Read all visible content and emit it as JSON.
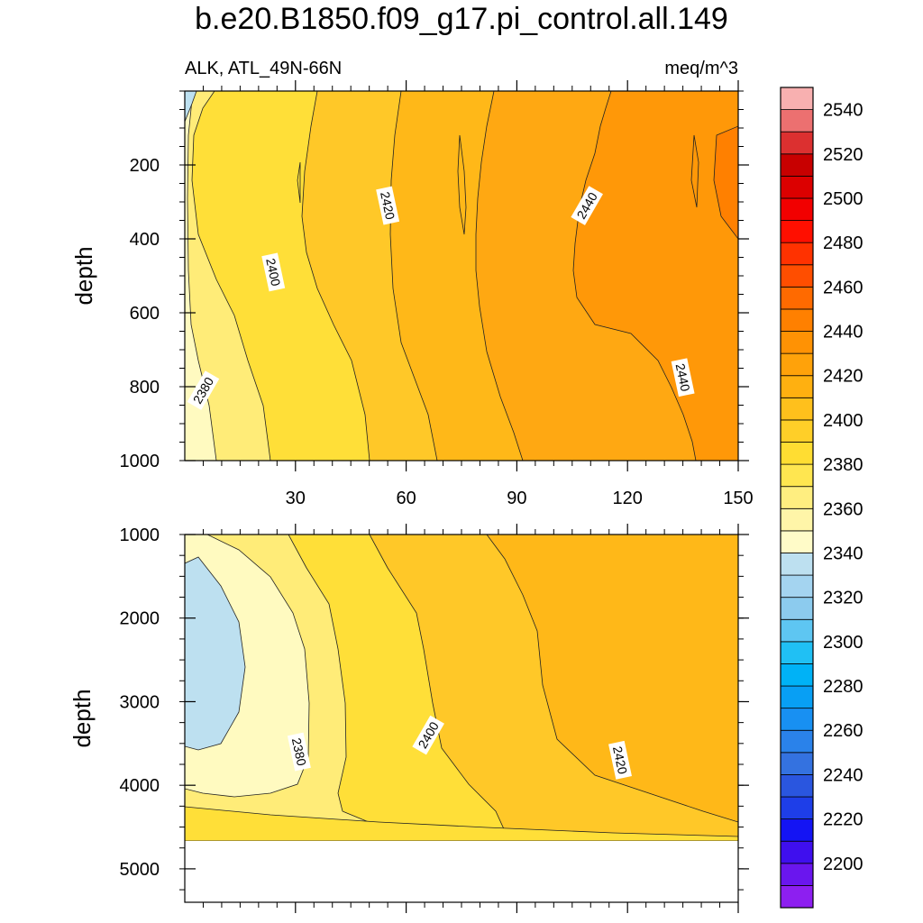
{
  "chart_data": [
    {
      "type": "heatmap",
      "subtype": "filled-contour",
      "title": "b.e20.B1850.f09_g17.pi_control.all.149",
      "left_string": "ALK, ATL_49N-66N",
      "right_string": "meq/m^3",
      "ylabel": "depth",
      "xlabel": "",
      "xlim": [
        0,
        150
      ],
      "ylim": [
        1000,
        0
      ],
      "xticks": [
        30,
        60,
        90,
        120,
        150
      ],
      "yticks": [
        200,
        400,
        600,
        800,
        1000
      ],
      "ytick_labels": [
        "200",
        "400",
        "600",
        "800",
        "1000"
      ],
      "xtick_labels": [
        "30",
        "60",
        "90",
        "120",
        "150"
      ],
      "contour_labels": [
        {
          "text": "2420",
          "x": 55,
          "y": 310
        },
        {
          "text": "2440",
          "x": 109,
          "y": 310
        },
        {
          "text": "2400",
          "x": 24,
          "y": 490
        },
        {
          "text": "2380",
          "x": 5,
          "y": 810
        },
        {
          "text": "2440",
          "x": 135,
          "y": 775
        }
      ]
    },
    {
      "type": "heatmap",
      "subtype": "filled-contour",
      "ylabel": "depth",
      "xlabel": "",
      "xlim": [
        0,
        150
      ],
      "ylim": [
        5400,
        1000
      ],
      "ocean_floor_depth": 4640,
      "xticks": [
        30,
        60,
        90,
        120,
        150
      ],
      "yticks": [
        1000,
        2000,
        3000,
        4000,
        5000
      ],
      "ytick_labels": [
        "1000",
        "2000",
        "3000",
        "4000",
        "5000"
      ],
      "contour_labels": [
        {
          "text": "2380",
          "x": 31,
          "y": 3600
        },
        {
          "text": "2400",
          "x": 66,
          "y": 3400
        },
        {
          "text": "2420",
          "x": 118,
          "y": 3700
        }
      ]
    }
  ],
  "colorbar": {
    "levels_min": 2190,
    "step": 10,
    "colors": [
      "#8d1ff0",
      "#6a16ee",
      "#3f0fee",
      "#1414f4",
      "#1e3ee8",
      "#2a56df",
      "#3472e0",
      "#2a82ea",
      "#1890f2",
      "#089ff4",
      "#00b2f6",
      "#20c0f4",
      "#5ec6f2",
      "#8ccbee",
      "#a4d4f0",
      "#bde0f0",
      "#fffbc8",
      "#fff5a8",
      "#ffee80",
      "#ffe650",
      "#ffdd32",
      "#ffcf28",
      "#ffc01c",
      "#ffb010",
      "#ffa20a",
      "#ff9204",
      "#ff8000",
      "#ff6a00",
      "#ff4e00",
      "#ff3200",
      "#ff0f00",
      "#f20000",
      "#dc0000",
      "#c80000",
      "#dc3030",
      "#ec7070",
      "#f8b0b0"
    ],
    "tick_labels": [
      "2200",
      "2220",
      "2240",
      "2260",
      "2280",
      "2300",
      "2320",
      "2340",
      "2360",
      "2380",
      "2400",
      "2420",
      "2440",
      "2460",
      "2480",
      "2500",
      "2520",
      "2540"
    ]
  }
}
